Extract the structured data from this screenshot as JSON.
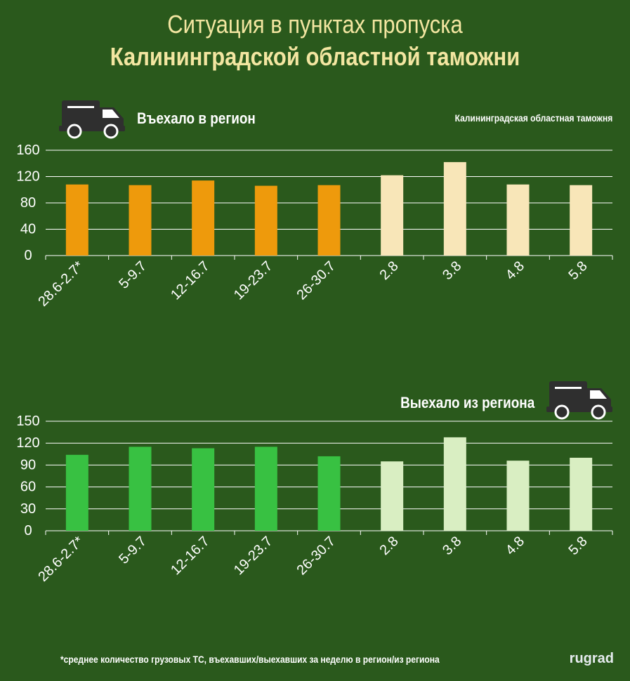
{
  "title": {
    "line1": "Ситуация в пунктах пропуска",
    "line2": "Калининградской областной таможни"
  },
  "source": "Калининградская областная таможня",
  "footnote": "*среднее количество грузовых ТС, въехавших/выехавших за неделю в регион/из региона",
  "brand": "rugrad",
  "colors": {
    "background": "#2a591c",
    "title": "#f3e6a1",
    "in_weekly": "#ee9a0c",
    "in_daily": "#f8e6b8",
    "out_weekly": "#38c142",
    "out_daily": "#d9eec2",
    "grid": "#ffffff",
    "truck_body": "#2f2f2f"
  },
  "icons": [
    "truck-icon"
  ],
  "chart_data": [
    {
      "type": "bar",
      "title": "Въехало в регион",
      "categories": [
        "28.6-2.7*",
        "5-9.7",
        "12-16.7",
        "19-23.7",
        "26-30.7",
        "2.8",
        "3.8",
        "4.8",
        "5.8"
      ],
      "values": [
        108,
        107,
        114,
        106,
        107,
        122,
        142,
        108,
        107
      ],
      "ylim": [
        0,
        160
      ],
      "yticks": [
        0,
        40,
        80,
        120,
        160
      ],
      "xlabel": "",
      "ylabel": "",
      "grid": true
    },
    {
      "type": "bar",
      "title": "Выехало из региона",
      "categories": [
        "28.6-2.7*",
        "5-9.7",
        "12-16.7",
        "19-23.7",
        "26-30.7",
        "2.8",
        "3.8",
        "4.8",
        "5.8"
      ],
      "values": [
        104,
        115,
        113,
        115,
        102,
        95,
        128,
        96,
        100
      ],
      "ylim": [
        0,
        150
      ],
      "yticks": [
        0,
        30,
        60,
        90,
        120,
        150
      ],
      "xlabel": "",
      "ylabel": "",
      "grid": true
    }
  ]
}
